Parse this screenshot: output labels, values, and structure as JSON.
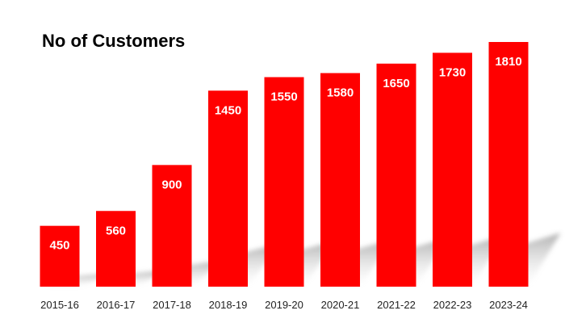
{
  "chart_data": {
    "type": "bar",
    "title": "No of Customers",
    "categories": [
      "2015-16",
      "2016-17",
      "2017-18",
      "2018-19",
      "2019-20",
      "2020-21",
      "2021-22",
      "2022-23",
      "2023-24"
    ],
    "values": [
      450,
      560,
      900,
      1450,
      1550,
      1580,
      1650,
      1730,
      1810
    ],
    "xlabel": "",
    "ylabel": "",
    "ylim": [
      0,
      1810
    ],
    "grid": false,
    "legend": "none",
    "show_value_axis": false,
    "data_labels": "inside-top",
    "bar_color": "#ff0000",
    "label_color": "#ffffff",
    "shadow": true
  }
}
